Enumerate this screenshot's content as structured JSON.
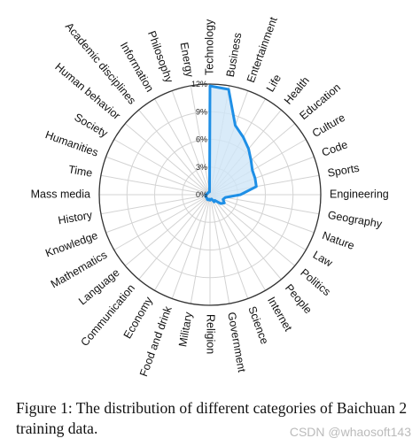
{
  "chart_data": {
    "type": "radar",
    "title": "",
    "series_color": "#1e8fe6",
    "fill_color": "#cfe6f8",
    "grid_color": "#d3d3d3",
    "r_ticks": [
      "0%",
      "3%",
      "6%",
      "9%",
      "12%"
    ],
    "r_max": 12,
    "categories": [
      "Technology",
      "Business",
      "Entertainment",
      "Life",
      "Health",
      "Education",
      "Culture",
      "Code",
      "Sports",
      "Engineering",
      "Geography",
      "Nature",
      "Law",
      "Politics",
      "People",
      "Internet",
      "Science",
      "Government",
      "Religion",
      "Military",
      "Food and drink",
      "Economy",
      "Communication",
      "Language",
      "Mathematics",
      "Knowledge",
      "History",
      "Mass media",
      "Time",
      "Humanities",
      "Society",
      "Human behavior",
      "Academic disciplines",
      "Information",
      "Philosophy",
      "Energy"
    ],
    "values": [
      11.8,
      11.6,
      8.0,
      7.2,
      6.5,
      5.8,
      5.3,
      5.2,
      5.1,
      3.3,
      1.7,
      1.5,
      1.8,
      1.5,
      0.8,
      0.9,
      0.5,
      0.5,
      0.6,
      0.5,
      0.6,
      0.6,
      0.5,
      0.5,
      0.5,
      0.5,
      0.5,
      0.4,
      0.4,
      0.3,
      0.3,
      0.3,
      0.3,
      0.3,
      0.3,
      0.3
    ]
  },
  "caption": "Figure 1: The distribution of different categories of Baichuan 2 training data.",
  "watermark": "CSDN @whaosoft143"
}
